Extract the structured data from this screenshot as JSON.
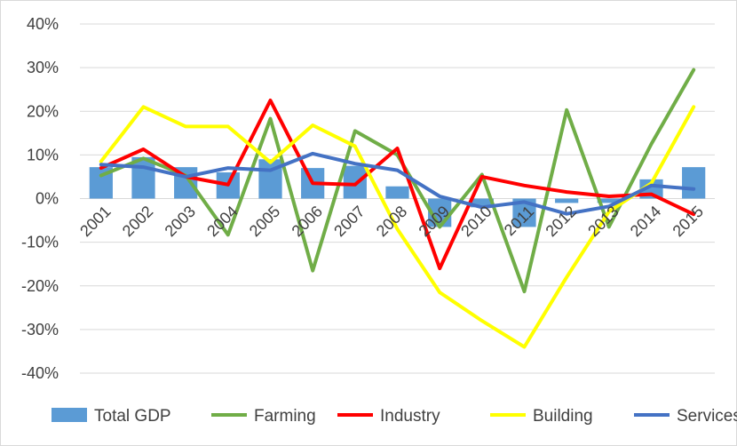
{
  "chart_data": {
    "type": "bar+line",
    "categories": [
      "2001",
      "2002",
      "2003",
      "2004",
      "2005",
      "2006",
      "2007",
      "2008",
      "2009",
      "2010",
      "2011",
      "2012",
      "2013",
      "2014",
      "2015"
    ],
    "ylim": [
      -40,
      40
    ],
    "yticks": [
      -40,
      -30,
      -20,
      -10,
      0,
      10,
      20,
      30,
      40
    ],
    "ytick_labels": [
      "-40%",
      "-30%",
      "-20%",
      "-10%",
      "0%",
      "10%",
      "20%",
      "30%",
      "40%"
    ],
    "grid": true,
    "legend_position": "bottom",
    "title": "",
    "xlabel": "",
    "ylabel": "",
    "series": [
      {
        "name": "Total GDP",
        "kind": "bar",
        "color": "#5b9bd5",
        "values": [
          7.2,
          9.5,
          7.2,
          6.0,
          9.0,
          7.0,
          7.5,
          2.8,
          -6.5,
          -2.0,
          -6.5,
          -1.0,
          -1.0,
          4.4,
          7.2
        ]
      },
      {
        "name": "Farming",
        "kind": "line",
        "color": "#70ad47",
        "values": [
          5.3,
          9.2,
          5.3,
          -8.3,
          18.3,
          -16.5,
          15.5,
          10.0,
          -6.5,
          5.5,
          -21.3,
          20.3,
          -6.5,
          12.5,
          29.5
        ]
      },
      {
        "name": "Industry",
        "kind": "line",
        "color": "#ff0000",
        "values": [
          7.0,
          11.3,
          5.0,
          3.2,
          22.5,
          3.5,
          3.2,
          11.5,
          -16.0,
          5.0,
          3.0,
          1.5,
          0.5,
          1.0,
          -3.6
        ]
      },
      {
        "name": "Building",
        "kind": "line",
        "color": "#ffff00",
        "values": [
          8.5,
          21.0,
          16.5,
          16.5,
          8.3,
          16.8,
          12.0,
          -7.0,
          -21.5,
          -28.0,
          -34.0,
          -18.0,
          -3.0,
          3.5,
          21.0
        ]
      },
      {
        "name": "Services",
        "kind": "line",
        "color": "#4472c4",
        "values": [
          7.8,
          7.2,
          5.0,
          7.0,
          6.5,
          10.3,
          8.0,
          6.5,
          0.5,
          -2.0,
          -0.8,
          -3.5,
          -1.8,
          3.0,
          2.2
        ]
      }
    ]
  }
}
